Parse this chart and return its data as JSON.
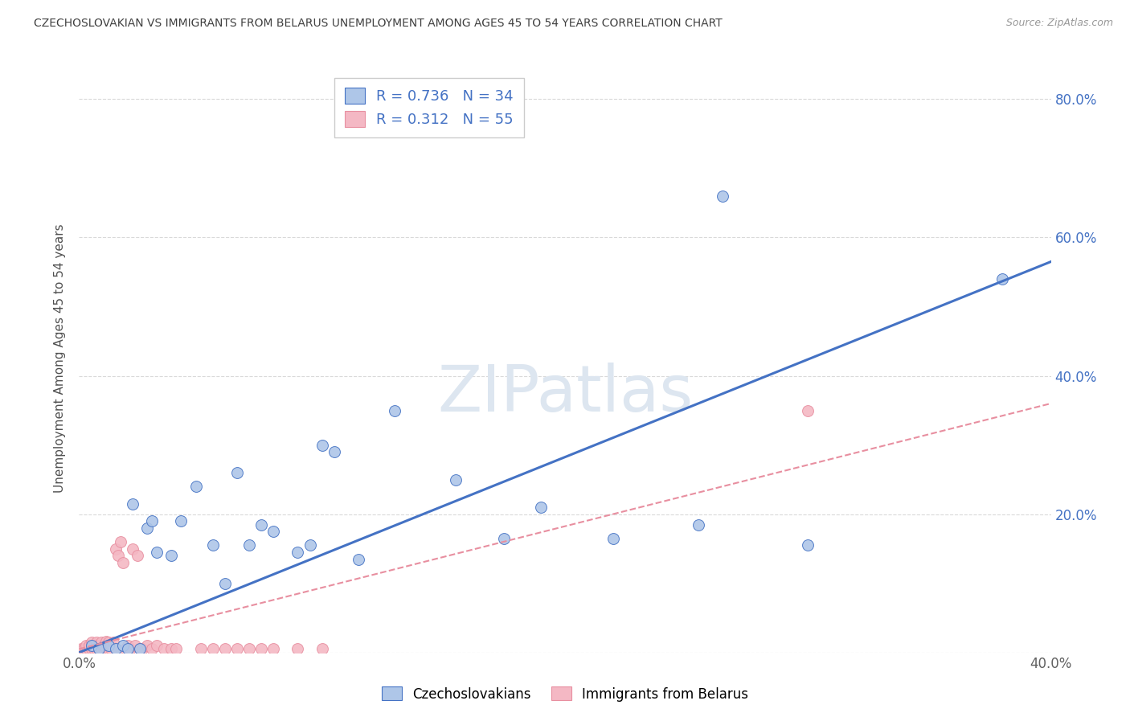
{
  "title": "CZECHOSLOVAKIAN VS IMMIGRANTS FROM BELARUS UNEMPLOYMENT AMONG AGES 45 TO 54 YEARS CORRELATION CHART",
  "source": "Source: ZipAtlas.com",
  "ylabel": "Unemployment Among Ages 45 to 54 years",
  "xlim": [
    0,
    0.4
  ],
  "ylim": [
    0,
    0.85
  ],
  "watermark": "ZIPatlas",
  "legend_entry1": "R = 0.736   N = 34",
  "legend_entry2": "R = 0.312   N = 55",
  "legend_label1": "Czechoslovakians",
  "legend_label2": "Immigrants from Belarus",
  "blue_scatter_x": [
    0.005,
    0.008,
    0.012,
    0.015,
    0.018,
    0.02,
    0.022,
    0.025,
    0.028,
    0.03,
    0.032,
    0.038,
    0.042,
    0.048,
    0.055,
    0.06,
    0.065,
    0.07,
    0.075,
    0.08,
    0.09,
    0.095,
    0.1,
    0.105,
    0.115,
    0.13,
    0.155,
    0.175,
    0.19,
    0.22,
    0.255,
    0.265,
    0.3,
    0.38
  ],
  "blue_scatter_y": [
    0.01,
    0.005,
    0.01,
    0.005,
    0.01,
    0.005,
    0.215,
    0.005,
    0.18,
    0.19,
    0.145,
    0.14,
    0.19,
    0.24,
    0.155,
    0.1,
    0.26,
    0.155,
    0.185,
    0.175,
    0.145,
    0.155,
    0.3,
    0.29,
    0.135,
    0.35,
    0.25,
    0.165,
    0.21,
    0.165,
    0.185,
    0.66,
    0.155,
    0.54
  ],
  "pink_scatter_x": [
    0.001,
    0.002,
    0.003,
    0.003,
    0.004,
    0.004,
    0.005,
    0.005,
    0.005,
    0.006,
    0.006,
    0.007,
    0.007,
    0.008,
    0.008,
    0.009,
    0.009,
    0.01,
    0.01,
    0.011,
    0.011,
    0.012,
    0.012,
    0.013,
    0.013,
    0.014,
    0.015,
    0.015,
    0.016,
    0.017,
    0.018,
    0.019,
    0.02,
    0.021,
    0.022,
    0.023,
    0.024,
    0.025,
    0.026,
    0.028,
    0.03,
    0.032,
    0.035,
    0.038,
    0.04,
    0.05,
    0.055,
    0.06,
    0.065,
    0.07,
    0.075,
    0.08,
    0.09,
    0.1,
    0.3
  ],
  "pink_scatter_y": [
    0.005,
    0.005,
    0.005,
    0.01,
    0.005,
    0.01,
    0.005,
    0.01,
    0.015,
    0.005,
    0.01,
    0.005,
    0.015,
    0.005,
    0.01,
    0.005,
    0.015,
    0.005,
    0.01,
    0.005,
    0.016,
    0.005,
    0.015,
    0.005,
    0.01,
    0.015,
    0.005,
    0.15,
    0.14,
    0.16,
    0.13,
    0.005,
    0.01,
    0.005,
    0.15,
    0.01,
    0.14,
    0.005,
    0.005,
    0.01,
    0.005,
    0.01,
    0.005,
    0.005,
    0.005,
    0.005,
    0.005,
    0.005,
    0.005,
    0.005,
    0.005,
    0.005,
    0.005,
    0.005,
    0.35
  ],
  "blue_line_x": [
    0.0,
    0.4
  ],
  "blue_line_y": [
    0.0,
    0.565
  ],
  "pink_line_x": [
    0.0,
    0.4
  ],
  "pink_line_y": [
    0.005,
    0.36
  ],
  "blue_color": "#4472c4",
  "pink_color": "#e88fa0",
  "blue_scatter_color": "#aec6e8",
  "pink_scatter_color": "#f4b8c4",
  "background_color": "#ffffff",
  "grid_color": "#d9d9d9",
  "title_color": "#404040",
  "right_axis_color": "#4472c4",
  "watermark_color": "#dde6f0",
  "scatter_size": 100,
  "right_yticks": [
    0.2,
    0.4,
    0.6,
    0.8
  ],
  "right_ytick_labels": [
    "20.0%",
    "40.0%",
    "60.0%",
    "80.0%"
  ]
}
